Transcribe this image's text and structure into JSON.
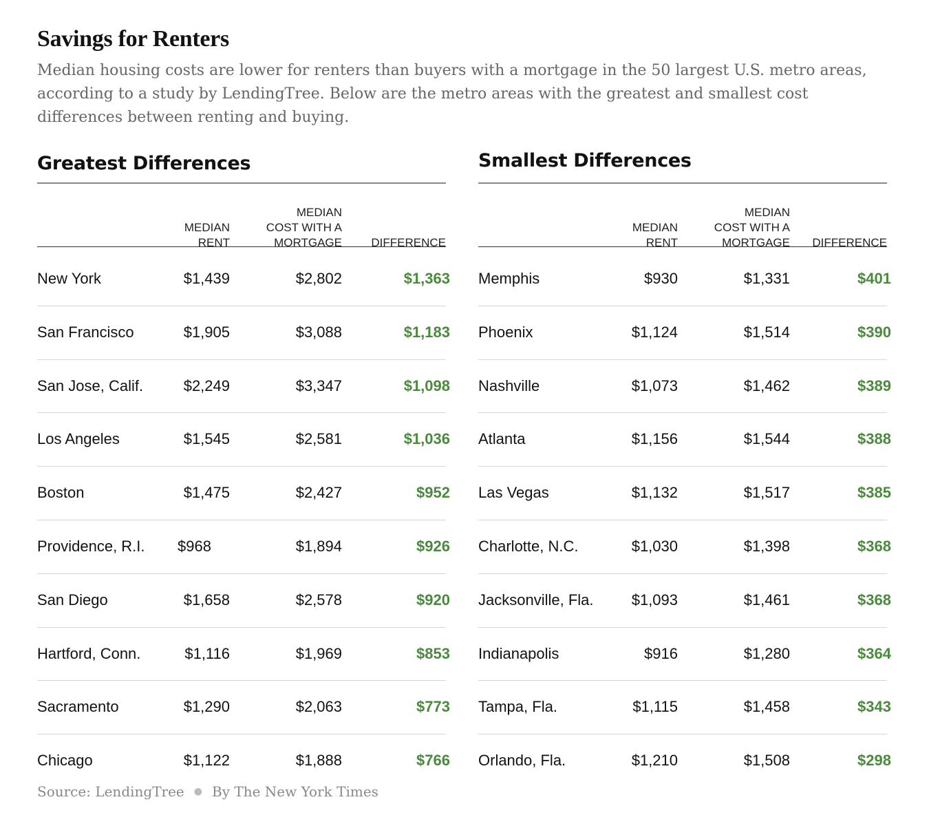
{
  "title": "Savings for Renters",
  "subtitle": "Median housing costs are lower for renters than buyers with a mortgage in the 50 largest U.S. metro areas, according to a study by LendingTree. Below are the metro areas with the greatest and smallest cost differences between renting and buying.",
  "columns": {
    "rent": "MEDIAN\nRENT",
    "mortgage": "MEDIAN\nCOST WITH A\nMORTGAGE",
    "difference": "DIFFERENCE"
  },
  "greatest": {
    "title": "Greatest Differences",
    "rows": [
      {
        "city": "New York",
        "rent": "$1,439",
        "mortgage": "$2,802",
        "difference": "$1,363"
      },
      {
        "city": "San Francisco",
        "rent": "$1,905",
        "mortgage": "$3,088",
        "difference": "$1,183"
      },
      {
        "city": "San Jose, Calif.",
        "rent": "$2,249",
        "mortgage": "$3,347",
        "difference": "$1,098"
      },
      {
        "city": "Los Angeles",
        "rent": "$1,545",
        "mortgage": "$2,581",
        "difference": "$1,036"
      },
      {
        "city": "Boston",
        "rent": "$1,475",
        "mortgage": "$2,427",
        "difference": "$952"
      },
      {
        "city": "Providence, R.I.",
        "rent": "$968",
        "mortgage": "$1,894",
        "difference": "$926"
      },
      {
        "city": "San Diego",
        "rent": "$1,658",
        "mortgage": "$2,578",
        "difference": "$920"
      },
      {
        "city": "Hartford, Conn.",
        "rent": "$1,116",
        "mortgage": "$1,969",
        "difference": "$853"
      },
      {
        "city": "Sacramento",
        "rent": "$1,290",
        "mortgage": "$2,063",
        "difference": "$773"
      },
      {
        "city": "Chicago",
        "rent": "$1,122",
        "mortgage": "$1,888",
        "difference": "$766"
      }
    ]
  },
  "smallest": {
    "title": "Smallest Differences",
    "rows": [
      {
        "city": "Memphis",
        "rent": "$930",
        "mortgage": "$1,331",
        "difference": "$401"
      },
      {
        "city": "Phoenix",
        "rent": "$1,124",
        "mortgage": "$1,514",
        "difference": "$390"
      },
      {
        "city": "Nashville",
        "rent": "$1,073",
        "mortgage": "$1,462",
        "difference": "$389"
      },
      {
        "city": "Atlanta",
        "rent": "$1,156",
        "mortgage": "$1,544",
        "difference": "$388"
      },
      {
        "city": "Las Vegas",
        "rent": "$1,132",
        "mortgage": "$1,517",
        "difference": "$385"
      },
      {
        "city": "Charlotte, N.C.",
        "rent": "$1,030",
        "mortgage": "$1,398",
        "difference": "$368"
      },
      {
        "city": "Jacksonville, Fla.",
        "rent": "$1,093",
        "mortgage": "$1,461",
        "difference": "$368"
      },
      {
        "city": "Indianapolis",
        "rent": "$916",
        "mortgage": "$1,280",
        "difference": "$364"
      },
      {
        "city": "Tampa, Fla.",
        "rent": "$1,115",
        "mortgage": "$1,458",
        "difference": "$343"
      },
      {
        "city": "Orlando, Fla.",
        "rent": "$1,210",
        "mortgage": "$1,508",
        "difference": "$298"
      }
    ]
  },
  "footer": {
    "source": "Source: LendingTree",
    "credit": "By The New York Times"
  },
  "colors": {
    "difference": "#4a8a3c",
    "subtitle": "#666666"
  }
}
